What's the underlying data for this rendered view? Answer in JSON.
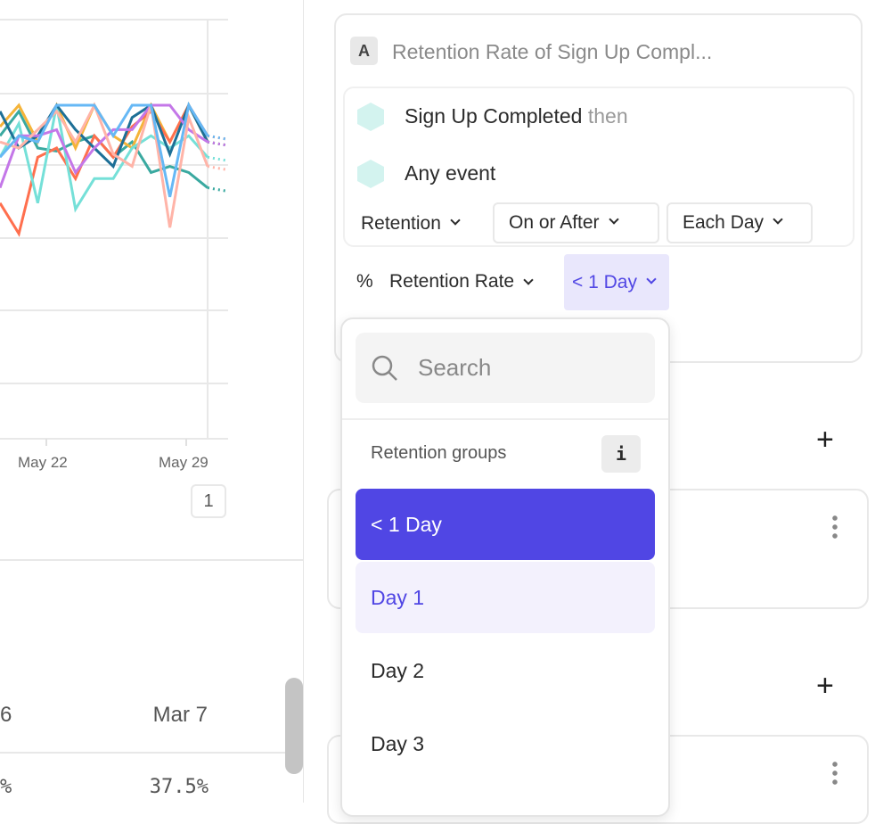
{
  "chart_data": {
    "type": "line",
    "x_tick_labels": [
      "May 22",
      "May 29"
    ],
    "grid": true,
    "series": [
      {
        "color": "#3aa9a0",
        "values": [
          62,
          70,
          58,
          57,
          60,
          62,
          55,
          60,
          50,
          52,
          50,
          45
        ]
      },
      {
        "color": "#f5b43a",
        "values": [
          65,
          72,
          60,
          72,
          58,
          72,
          62,
          58,
          72,
          60,
          72,
          60
        ]
      },
      {
        "color": "#ff6f4e",
        "values": [
          40,
          30,
          55,
          58,
          48,
          62,
          55,
          65,
          70,
          60,
          72,
          62
        ]
      },
      {
        "color": "#75e0d8",
        "values": [
          55,
          66,
          40,
          72,
          38,
          48,
          48,
          58,
          62,
          58,
          62,
          55
        ]
      },
      {
        "color": "#1d6f96",
        "values": [
          70,
          58,
          62,
          72,
          64,
          58,
          52,
          68,
          72,
          56,
          72,
          60
        ]
      },
      {
        "color": "#c477e8",
        "values": [
          45,
          62,
          62,
          64,
          50,
          58,
          64,
          64,
          72,
          72,
          64,
          60
        ]
      },
      {
        "color": "#ffb4a8",
        "values": [
          60,
          58,
          64,
          70,
          60,
          72,
          56,
          52,
          72,
          32,
          68,
          52
        ]
      },
      {
        "color": "#66b8f5",
        "values": [
          55,
          62,
          60,
          72,
          72,
          72,
          62,
          72,
          72,
          42,
          72,
          62
        ]
      }
    ]
  },
  "badge": "1",
  "table": {
    "col_left": "6",
    "col_right": "Mar 7",
    "val_left": "%",
    "val_right": "37.5%"
  },
  "query": {
    "letter": "A",
    "title": "Retention Rate of Sign Up Compl...",
    "event1": "Sign Up Completed",
    "then": "then",
    "event2": "Any event",
    "retention": "Retention",
    "on_or_after": "On or After",
    "each_day": "Each Day",
    "percent": "%",
    "metric": "Retention Rate",
    "bucket": "< 1 Day"
  },
  "dropdown": {
    "search_placeholder": "Search",
    "group_label": "Retention groups",
    "info": "i",
    "items": [
      "< 1 Day",
      "Day 1",
      "Day 2",
      "Day 3"
    ]
  },
  "colors": {
    "accent": "#5046e4",
    "hover": "#f3f1fd"
  }
}
